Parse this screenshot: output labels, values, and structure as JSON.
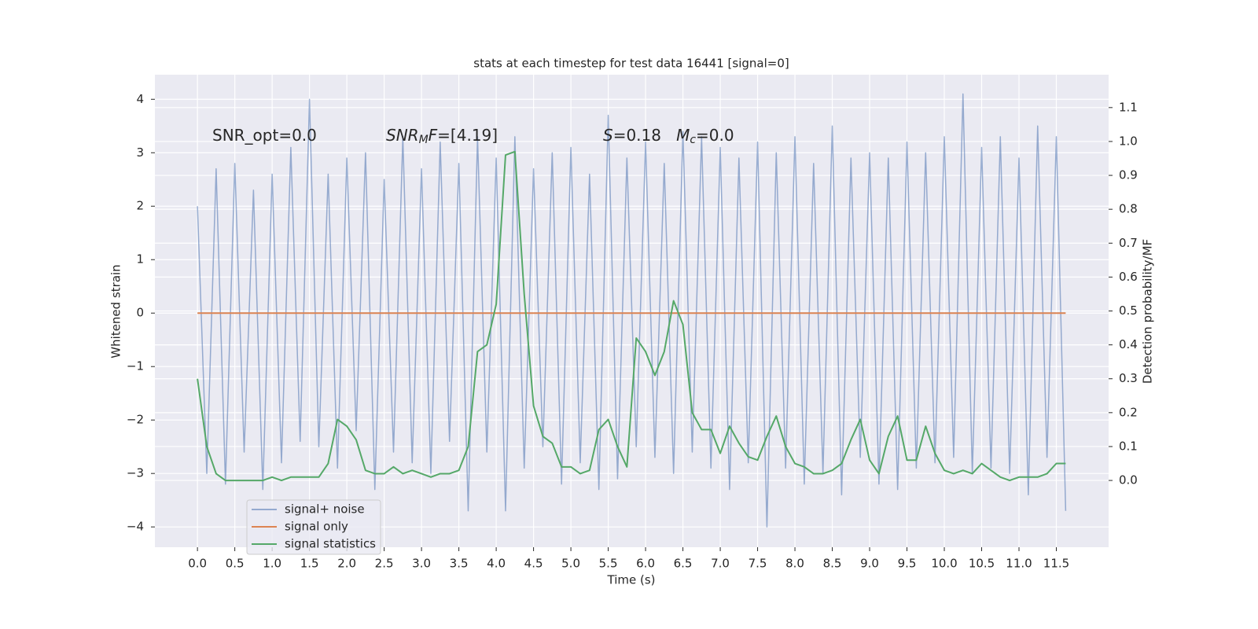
{
  "chart_data": {
    "type": "line",
    "title": "stats at each timestep for test data 16441 [signal=0]",
    "xlabel": "Time (s)",
    "ylabel": "Whitened strain",
    "y2label": "Detection probability/MF",
    "annotations": [
      {
        "parts": [
          {
            "text": "SNR_opt=0.0"
          }
        ]
      },
      {
        "parts": [
          {
            "text": "SNR",
            "italic": true
          },
          {
            "text": "M",
            "italic": true,
            "sub": true
          },
          {
            "text": "F",
            "italic": true
          },
          {
            "text": "=[4.19]"
          }
        ]
      },
      {
        "parts": [
          {
            "text": "S",
            "italic": true
          },
          {
            "text": "=0.18   "
          },
          {
            "text": "M",
            "italic": true
          },
          {
            "text": "c",
            "italic": true,
            "sub": true
          },
          {
            "text": "=0.0"
          }
        ]
      }
    ],
    "x": [
      0,
      0.125,
      0.25,
      0.375,
      0.5,
      0.625,
      0.75,
      0.875,
      1,
      1.125,
      1.25,
      1.375,
      1.5,
      1.625,
      1.75,
      1.875,
      2,
      2.125,
      2.25,
      2.375,
      2.5,
      2.625,
      2.75,
      2.875,
      3,
      3.125,
      3.25,
      3.375,
      3.5,
      3.625,
      3.75,
      3.875,
      4,
      4.125,
      4.25,
      4.375,
      4.5,
      4.625,
      4.75,
      4.875,
      5,
      5.125,
      5.25,
      5.375,
      5.5,
      5.625,
      5.75,
      5.875,
      6,
      6.125,
      6.25,
      6.375,
      6.5,
      6.625,
      6.75,
      6.875,
      7,
      7.125,
      7.25,
      7.375,
      7.5,
      7.625,
      7.75,
      7.875,
      8,
      8.125,
      8.25,
      8.375,
      8.5,
      8.625,
      8.75,
      8.875,
      9,
      9.125,
      9.25,
      9.375,
      9.5,
      9.625,
      9.75,
      9.875,
      10,
      10.125,
      10.25,
      10.375,
      10.5,
      10.625,
      10.75,
      10.875,
      11,
      11.125,
      11.25,
      11.375,
      11.5,
      11.625
    ],
    "series": [
      {
        "name": "signal+ noise",
        "color": "#4c72b0",
        "axis": "y",
        "values": [
          2.0,
          -3.0,
          2.7,
          -3.2,
          2.8,
          -2.6,
          2.3,
          -3.3,
          2.6,
          -2.8,
          3.1,
          -2.4,
          4.0,
          -2.5,
          2.6,
          -2.9,
          2.9,
          -2.2,
          3.0,
          -3.3,
          2.5,
          -2.6,
          3.3,
          -2.8,
          2.7,
          -3.0,
          3.2,
          -2.4,
          2.8,
          -3.7,
          3.3,
          -2.6,
          2.9,
          -3.7,
          3.3,
          -2.9,
          2.7,
          -2.5,
          3.0,
          -3.2,
          3.1,
          -2.8,
          2.6,
          -3.3,
          3.7,
          -3.1,
          2.9,
          -2.5,
          3.2,
          -2.7,
          2.8,
          -3.0,
          3.4,
          -2.6,
          3.3,
          -2.9,
          3.1,
          -3.3,
          2.9,
          -2.8,
          3.2,
          -4.0,
          3.0,
          -2.9,
          3.3,
          -3.2,
          2.8,
          -3.0,
          3.5,
          -3.4,
          2.9,
          -2.7,
          3.0,
          -3.2,
          2.9,
          -3.3,
          3.2,
          -2.9,
          3.0,
          -2.8,
          3.3,
          -2.7,
          4.1,
          -3.0,
          3.1,
          -2.9,
          3.3,
          -3.0,
          2.9,
          -3.4,
          3.5,
          -2.7,
          3.3,
          -3.7
        ]
      },
      {
        "name": "signal only",
        "color": "#dd8452",
        "axis": "y",
        "values": [
          0,
          0,
          0,
          0,
          0,
          0,
          0,
          0,
          0,
          0,
          0,
          0,
          0,
          0,
          0,
          0,
          0,
          0,
          0,
          0,
          0,
          0,
          0,
          0,
          0,
          0,
          0,
          0,
          0,
          0,
          0,
          0,
          0,
          0,
          0,
          0,
          0,
          0,
          0,
          0,
          0,
          0,
          0,
          0,
          0,
          0,
          0,
          0,
          0,
          0,
          0,
          0,
          0,
          0,
          0,
          0,
          0,
          0,
          0,
          0,
          0,
          0,
          0,
          0,
          0,
          0,
          0,
          0,
          0,
          0,
          0,
          0,
          0,
          0,
          0,
          0,
          0,
          0,
          0,
          0,
          0,
          0,
          0,
          0,
          0,
          0,
          0,
          0,
          0,
          0,
          0,
          0,
          0,
          0
        ]
      },
      {
        "name": "signal statistics",
        "color": "#55a868",
        "axis": "y2",
        "values": [
          0.3,
          0.1,
          0.02,
          0.0,
          0.0,
          0.0,
          0.0,
          0.0,
          0.01,
          0.0,
          0.01,
          0.01,
          0.01,
          0.01,
          0.05,
          0.18,
          0.16,
          0.12,
          0.03,
          0.02,
          0.02,
          0.04,
          0.02,
          0.03,
          0.02,
          0.01,
          0.02,
          0.02,
          0.03,
          0.1,
          0.38,
          0.4,
          0.52,
          0.96,
          0.97,
          0.55,
          0.22,
          0.13,
          0.11,
          0.04,
          0.04,
          0.02,
          0.03,
          0.15,
          0.18,
          0.1,
          0.04,
          0.42,
          0.38,
          0.31,
          0.38,
          0.53,
          0.46,
          0.2,
          0.15,
          0.15,
          0.08,
          0.16,
          0.11,
          0.07,
          0.06,
          0.13,
          0.19,
          0.1,
          0.05,
          0.04,
          0.02,
          0.02,
          0.03,
          0.05,
          0.12,
          0.18,
          0.06,
          0.02,
          0.13,
          0.19,
          0.06,
          0.06,
          0.16,
          0.08,
          0.03,
          0.02,
          0.03,
          0.02,
          0.05,
          0.03,
          0.01,
          0.0,
          0.01,
          0.01,
          0.01,
          0.02,
          0.05,
          0.05
        ]
      }
    ],
    "xlim": [
      -0.57,
      12.2
    ],
    "xticks": [
      {
        "value": 0,
        "label": "0.0"
      },
      0.5,
      {
        "value": 1,
        "label": "1.0"
      },
      1.5,
      {
        "value": 2,
        "label": "2.0"
      },
      2.5,
      {
        "value": 3,
        "label": "3.0"
      },
      3.5,
      {
        "value": 4,
        "label": "4.0"
      },
      4.5,
      {
        "value": 5,
        "label": "5.0"
      },
      5.5,
      {
        "value": 6,
        "label": "6.0"
      },
      6.5,
      {
        "value": 7,
        "label": "7.0"
      },
      7.5,
      {
        "value": 8,
        "label": "8.0"
      },
      8.5,
      {
        "value": 9,
        "label": "9.0"
      },
      9.5,
      {
        "value": 10,
        "label": "10.0"
      },
      10.5,
      {
        "value": 11,
        "label": "11.0"
      },
      11.5
    ],
    "ylim": [
      -4.38,
      4.46
    ],
    "yticks": [
      {
        "value": -4,
        "label": "−4"
      },
      {
        "value": -3,
        "label": "−3"
      },
      {
        "value": -2,
        "label": "−2"
      },
      {
        "value": -1,
        "label": "−1"
      },
      0,
      1,
      2,
      3,
      4
    ],
    "y2lim": [
      -0.197,
      1.197
    ],
    "y2ticks": [
      {
        "value": 0,
        "label": "0.0"
      },
      0.1,
      0.2,
      0.3,
      0.4,
      0.5,
      0.6,
      0.7,
      0.8,
      0.9,
      {
        "value": 1,
        "label": "1.0"
      },
      1.1
    ],
    "grid": true,
    "legend": "lower left"
  }
}
